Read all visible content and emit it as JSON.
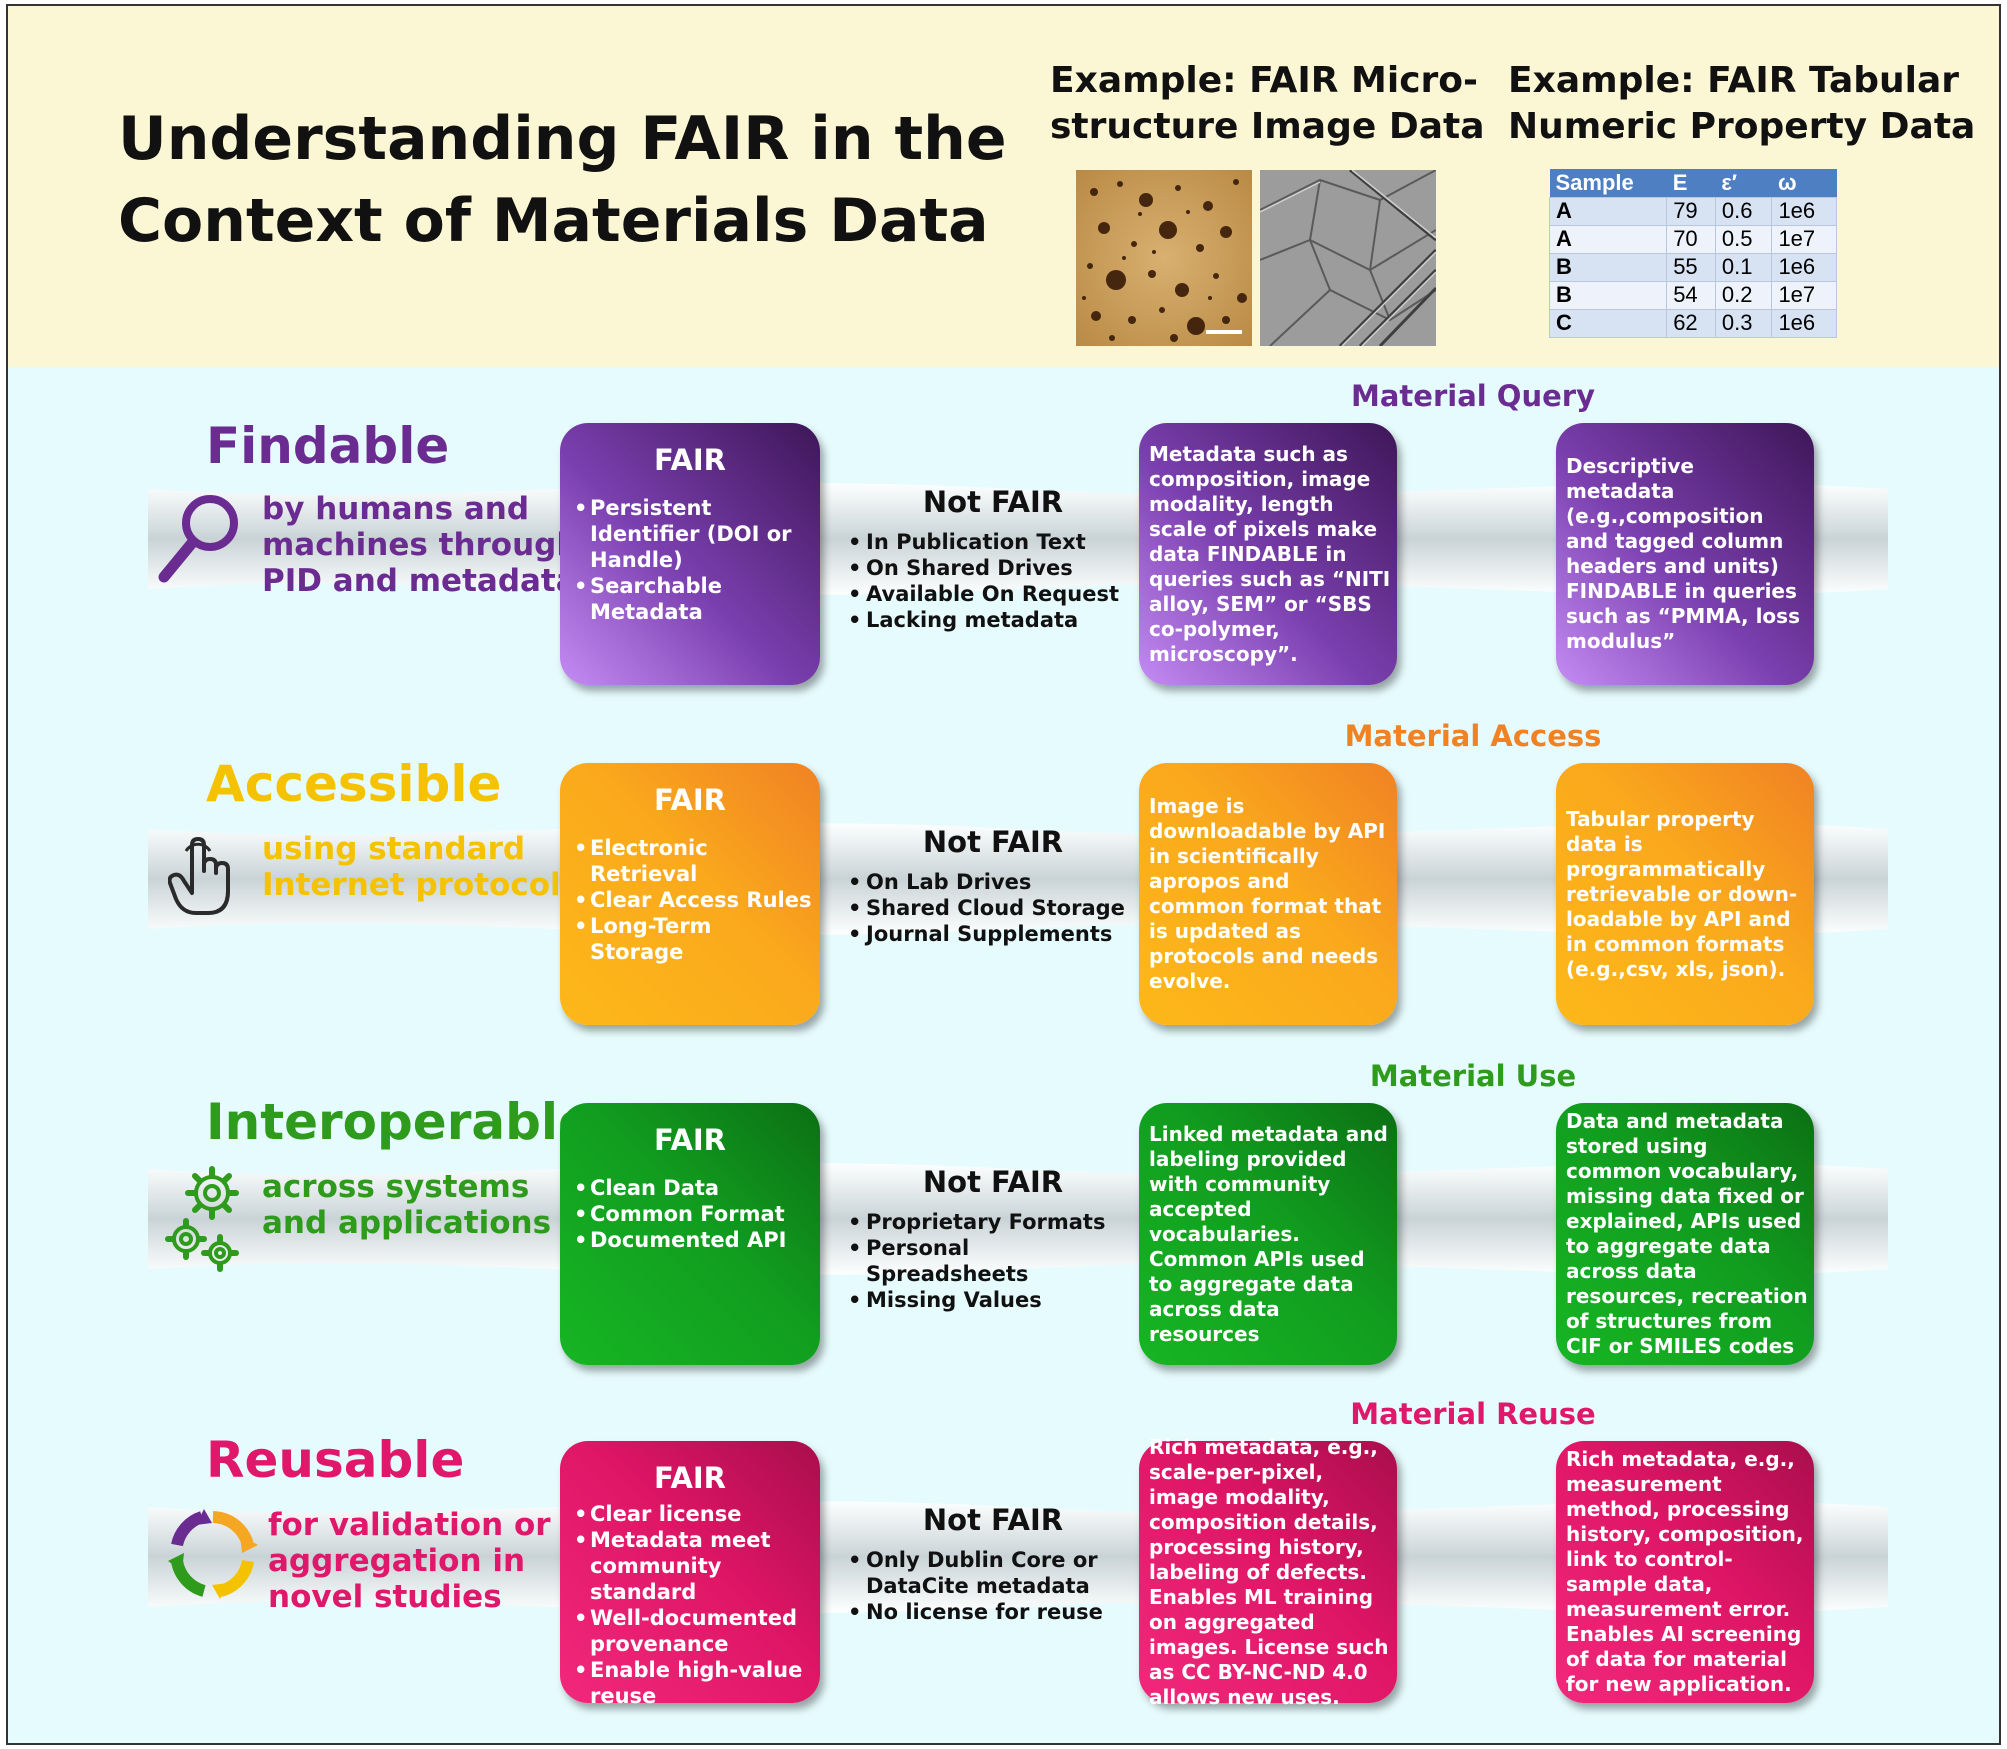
{
  "header": {
    "title_lines": [
      "Understanding FAIR in the",
      "Context of Materials Data"
    ],
    "example_image_lines": [
      "Example: FAIR Micro-",
      "structure Image Data"
    ],
    "example_table_lines": [
      "Example: FAIR Tabular",
      "Numeric Property Data"
    ],
    "table": {
      "columns": [
        "Sample",
        "E",
        "ε′",
        "ω"
      ],
      "rows": [
        [
          "A",
          "79",
          "0.6",
          "1e6"
        ],
        [
          "A",
          "70",
          "0.5",
          "1e7"
        ],
        [
          "B",
          "55",
          "0.1",
          "1e6"
        ],
        [
          "B",
          "54",
          "0.2",
          "1e7"
        ],
        [
          "C",
          "62",
          "0.3",
          "1e6"
        ]
      ]
    }
  },
  "rows": [
    {
      "principle": "Findable",
      "color": "#6b2c91",
      "icon": "magnifier-icon",
      "desc": [
        "by humans and",
        "machines through",
        "PID and metadata"
      ],
      "fair_title": "FAIR",
      "fair_items": [
        "Persistent Identifier (DOI or Handle)",
        "Searchable Metadata"
      ],
      "notfair_title": "Not FAIR",
      "notfair_items": [
        "In Publication Text",
        "On Shared Drives",
        "Available On Request",
        "Lacking metadata"
      ],
      "material_label": "Material Query",
      "image_example": "Metadata such as composition, image modality, length scale of pixels make data FINDABLE in queries such as “NITI alloy, SEM” or “SBS co-polymer, microscopy”.",
      "table_example": "Descriptive metadata (e.g.,composition and tagged column headers and units) FINDABLE in queries such as “PMMA, loss modulus”"
    },
    {
      "principle": "Accessible",
      "color": "#f5c200",
      "icon": "pointing-hand-icon",
      "desc": [
        "using standard",
        "Internet protocols"
      ],
      "fair_title": "FAIR",
      "fair_items": [
        "Electronic Retrieval",
        "Clear Access Rules",
        "Long-Term Storage"
      ],
      "notfair_title": "Not FAIR",
      "notfair_items": [
        "On Lab Drives",
        "Shared Cloud Storage",
        "Journal Supplements"
      ],
      "material_label": "Material Access",
      "image_example": "Image is downloadable by API in scientifically apropos and common format that is updated as protocols and needs evolve.",
      "table_example": "Tabular property data is programmatically retrievable or down-loadable by API and in common formats (e.g.,csv, xls, json)."
    },
    {
      "principle": "Interoperable",
      "color": "#2e9b1c",
      "icon": "gears-icon",
      "desc": [
        "across systems",
        "and applications"
      ],
      "fair_title": "FAIR",
      "fair_items": [
        "Clean Data",
        "Common Format",
        "Documented API"
      ],
      "notfair_title": "Not FAIR",
      "notfair_items": [
        "Proprietary Formats",
        "Personal Spreadsheets",
        "Missing Values"
      ],
      "material_label": "Material Use",
      "image_example": "Linked metadata and labeling provided with community accepted vocabularies. Common APIs used to aggregate data across data resources",
      "table_example": "Data and metadata stored using common vocabulary, missing data fixed or explained, APIs used to aggregate data across data resources, recreation of structures from CIF or SMILES codes"
    },
    {
      "principle": "Reusable",
      "color": "#e0186c",
      "icon": "recycle-cycle-icon",
      "desc": [
        "for validation or",
        "aggregation in",
        "novel studies"
      ],
      "fair_title": "FAIR",
      "fair_items": [
        "Clear license",
        "Metadata meet community standard",
        "Well-documented provenance",
        "Enable high-value reuse"
      ],
      "notfair_title": "Not FAIR",
      "notfair_items": [
        "Only Dublin Core or DataCite metadata",
        "No license for reuse"
      ],
      "material_label": "Material Reuse",
      "image_example": "Rich metadata, e.g., scale-per-pixel, image modality, composition details, processing history, labeling of defects. Enables ML training on aggregated images. License such as CC BY-NC-ND 4.0 allows new uses.",
      "table_example": "Rich metadata, e.g., measurement method, processing history, composition, link to control-sample data, measurement error. Enables AI screening of data for  material for new application."
    }
  ]
}
